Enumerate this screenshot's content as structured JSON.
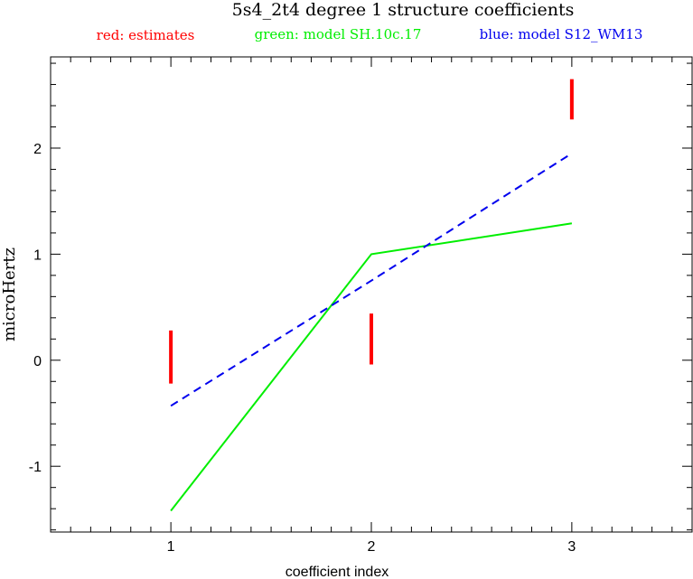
{
  "chart_data": {
    "type": "line",
    "title": "5s4_2t4 degree 1 structure coefficients",
    "xlabel": "coefficient index",
    "ylabel": "microHertz",
    "xlim": [
      0.4,
      3.6
    ],
    "ylim": [
      -1.62,
      2.86
    ],
    "x_ticks": [
      1,
      2,
      3
    ],
    "y_ticks": [
      -1,
      0,
      1,
      2
    ],
    "legend": [
      {
        "text": "red: estimates",
        "color": "#ff0000"
      },
      {
        "text": "green: model SH.10c.17",
        "color": "#00ee00"
      },
      {
        "text": "blue: model S12_WM13",
        "color": "#0000ee"
      }
    ],
    "estimates": {
      "color": "#ff0000",
      "bars": [
        {
          "x": 1,
          "low": -0.22,
          "high": 0.28
        },
        {
          "x": 2,
          "low": -0.04,
          "high": 0.44
        },
        {
          "x": 3,
          "low": 2.27,
          "high": 2.65
        }
      ]
    },
    "series": [
      {
        "color": "#00ee00",
        "style": "solid",
        "x": [
          1,
          2,
          3
        ],
        "y": [
          -1.42,
          1.0,
          1.29
        ]
      },
      {
        "color": "#0000ee",
        "style": "dashed",
        "x": [
          1,
          2,
          3
        ],
        "y": [
          -0.43,
          0.75,
          1.95
        ]
      }
    ]
  }
}
